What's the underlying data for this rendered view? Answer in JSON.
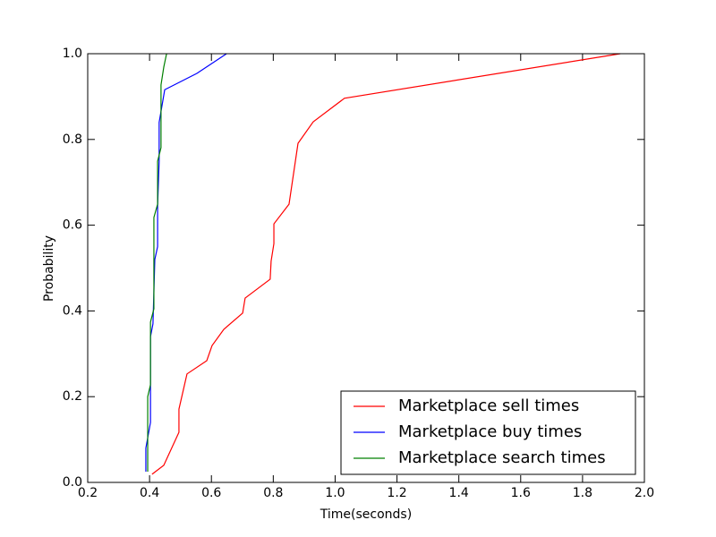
{
  "chart_data": {
    "type": "line",
    "xlabel": "Time(seconds)",
    "ylabel": "Probability",
    "xlim": [
      0.2,
      2.0
    ],
    "xticks": [
      0.2,
      0.4,
      0.6,
      0.8,
      {
        "value": 1.0,
        "label": "1.0"
      },
      1.2,
      1.4,
      1.6,
      1.8,
      {
        "value": 2.0,
        "label": "2.0"
      }
    ],
    "ylim": [
      0,
      1
    ],
    "yticks": [
      {
        "value": 0,
        "label": "0.0"
      },
      0.2,
      0.4,
      0.6,
      0.8,
      {
        "value": 1,
        "label": "1.0"
      }
    ],
    "legend": "lower right",
    "series": [
      {
        "name": "Marketplace sell times",
        "color": "#ff0000",
        "x": [
          0.408,
          0.446,
          0.495,
          0.495,
          0.521,
          0.585,
          0.602,
          0.64,
          0.701,
          0.709,
          0.79,
          0.793,
          0.802,
          0.802,
          0.851,
          0.88,
          0.929,
          1.03,
          1.922
        ],
        "values": [
          0.019,
          0.04,
          0.117,
          0.171,
          0.253,
          0.284,
          0.319,
          0.357,
          0.395,
          0.43,
          0.474,
          0.516,
          0.557,
          0.603,
          0.649,
          0.791,
          0.841,
          0.896,
          1.0
        ]
      },
      {
        "name": "Marketplace buy times",
        "color": "#0000ff",
        "x": [
          0.388,
          0.388,
          0.403,
          0.403,
          0.411,
          0.417,
          0.426,
          0.426,
          0.431,
          0.431,
          0.449,
          0.553,
          0.649
        ],
        "values": [
          0.025,
          0.08,
          0.14,
          0.34,
          0.37,
          0.52,
          0.55,
          0.645,
          0.75,
          0.84,
          0.916,
          0.954,
          1.0
        ]
      },
      {
        "name": "Marketplace search times",
        "color": "#008000",
        "x": [
          0.394,
          0.394,
          0.403,
          0.403,
          0.414,
          0.414,
          0.426,
          0.426,
          0.437,
          0.437,
          0.446,
          0.455
        ],
        "values": [
          0.025,
          0.2,
          0.228,
          0.374,
          0.405,
          0.618,
          0.649,
          0.749,
          0.781,
          0.927,
          0.969,
          1.0
        ]
      }
    ]
  }
}
